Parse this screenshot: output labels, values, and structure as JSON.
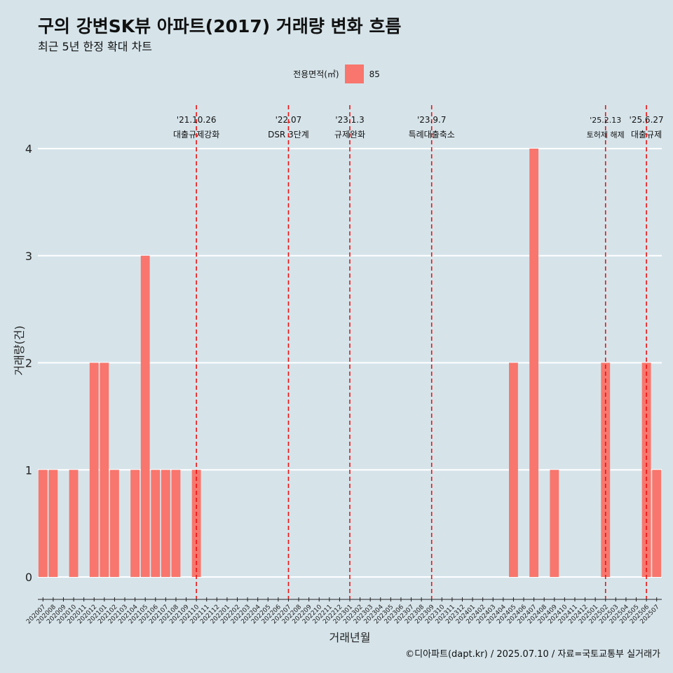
{
  "header": {
    "title": "구의 강변SK뷰 아파트(2017) 거래량 변화 흐름",
    "subtitle": "최근 5년 한정 확대 차트"
  },
  "legend": {
    "title": "전용면적(㎡)",
    "items": [
      {
        "label": "85",
        "color": "#f8766d"
      }
    ]
  },
  "caption": "©디아파트(dapt.kr) / 2025.07.10 / 자료=국토교통부 실거래가",
  "colors": {
    "background": "#d6e4ea",
    "bar": "#f8766d",
    "gridline": "#ffffff",
    "event_line": "#ee1111"
  },
  "chart_data": {
    "type": "bar",
    "xlabel": "거래년월",
    "ylabel": "거래량(건)",
    "ylim": [
      0,
      4
    ],
    "yticks": [
      0,
      1,
      2,
      3,
      4
    ],
    "grid": true,
    "legend_position": "top",
    "categories": [
      "202007",
      "202008",
      "202009",
      "202010",
      "202011",
      "202012",
      "202101",
      "202102",
      "202103",
      "202104",
      "202105",
      "202106",
      "202107",
      "202108",
      "202109",
      "202110",
      "202111",
      "202112",
      "202201",
      "202202",
      "202203",
      "202204",
      "202205",
      "202206",
      "202207",
      "202208",
      "202209",
      "202210",
      "202211",
      "202212",
      "202301",
      "202302",
      "202303",
      "202304",
      "202305",
      "202306",
      "202307",
      "202308",
      "202309",
      "202310",
      "202311",
      "202312",
      "202401",
      "202402",
      "202403",
      "202404",
      "202405",
      "202406",
      "202407",
      "202408",
      "202409",
      "202410",
      "202411",
      "202412",
      "202501",
      "202502",
      "202503",
      "202504",
      "202505",
      "202506",
      "202507"
    ],
    "series": [
      {
        "name": "85",
        "values": [
          1,
          1,
          0,
          1,
          0,
          2,
          2,
          1,
          0,
          1,
          3,
          1,
          1,
          1,
          0,
          1,
          0,
          0,
          0,
          0,
          0,
          0,
          0,
          0,
          0,
          0,
          0,
          0,
          0,
          0,
          0,
          0,
          0,
          0,
          0,
          0,
          0,
          0,
          0,
          0,
          0,
          0,
          0,
          0,
          0,
          0,
          2,
          0,
          4,
          0,
          1,
          0,
          0,
          0,
          0,
          2,
          0,
          0,
          0,
          2,
          1
        ]
      }
    ],
    "annotations": [
      {
        "date": "'21.10.26",
        "label": "대출규제강화",
        "x": "202110"
      },
      {
        "date": "'22.07",
        "label": "DSR 3단계",
        "x": "202207"
      },
      {
        "date": "'23.1.3",
        "label": "규제완화",
        "x": "202301"
      },
      {
        "date": "'23.9.7",
        "label": "특례대출축소",
        "x": "202309"
      },
      {
        "date": "'25.2.13",
        "label": "토허제 해제",
        "x": "202502"
      },
      {
        "date": "'25.6.27",
        "label": "대출규제",
        "x": "202506"
      }
    ]
  }
}
